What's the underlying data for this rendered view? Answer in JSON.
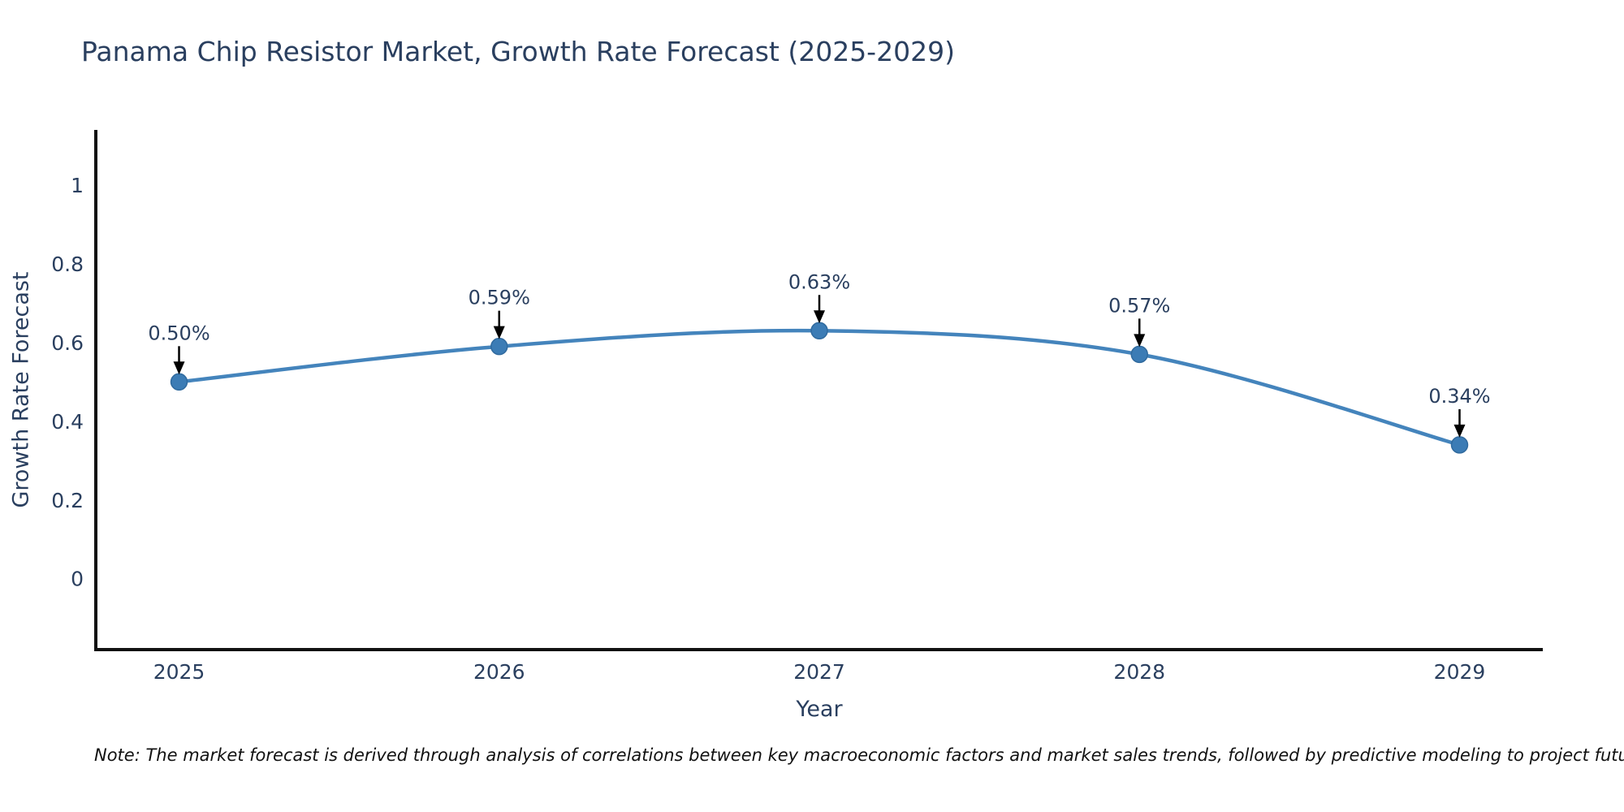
{
  "chart_data": {
    "type": "line",
    "title": "Panama Chip Resistor Market, Growth Rate Forecast (2025-2029)",
    "xlabel": "Year",
    "ylabel": "Growth Rate Forecast",
    "x": [
      2025,
      2026,
      2027,
      2028,
      2029
    ],
    "series": [
      {
        "name": "Growth Rate Forecast",
        "values": [
          0.5,
          0.59,
          0.63,
          0.57,
          0.34
        ]
      }
    ],
    "point_labels": [
      "0.50%",
      "0.59%",
      "0.63%",
      "0.57%",
      "0.34%"
    ],
    "xtick_labels": [
      "2025",
      "2026",
      "2027",
      "2028",
      "2029"
    ],
    "yticks": [
      0,
      0.2,
      0.4,
      0.6,
      0.8,
      1
    ],
    "ytick_labels": [
      "0",
      "0.2",
      "0.4",
      "0.6",
      "0.8",
      "1"
    ],
    "xlim": [
      2024.74,
      2029.26
    ],
    "ylim": [
      -0.18,
      1.14
    ],
    "grid": false,
    "legend_position": "none",
    "line_shape": "spline",
    "marker": "circle",
    "colors": {
      "line": "#4484bc",
      "marker_fill": "#3c7cb5",
      "marker_edge": "#306a9e",
      "axis": "#111111",
      "text": "#2a3f5f",
      "arrow": "#000000",
      "background": "#ffffff"
    }
  },
  "footnote": {
    "text": "Note: The market forecast is derived through analysis of correlations between key macroeconomic factors and market sales trends, followed by predictive modeling to project future sales"
  }
}
